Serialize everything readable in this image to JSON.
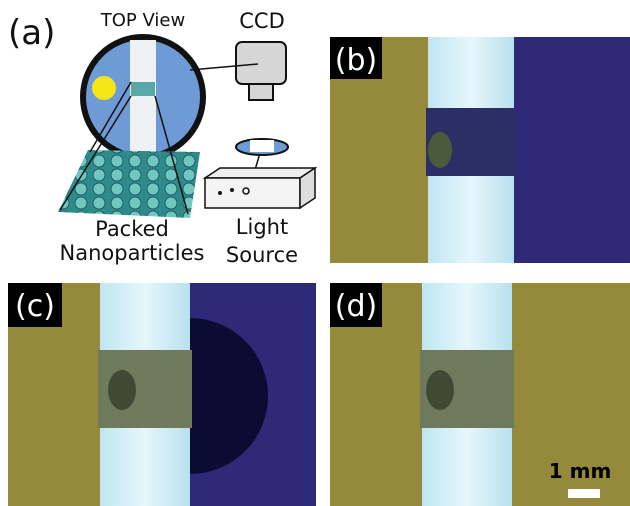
{
  "panel_a": {
    "label": "(a)",
    "top_view": "TOP View",
    "camera": "CCD",
    "sample": [
      "Packed",
      "Nanoparticles"
    ],
    "source": [
      "Light",
      "Source"
    ]
  },
  "panel_b": {
    "label": "(b)"
  },
  "panel_c": {
    "label": "(c)"
  },
  "panel_d": {
    "label": "(d)",
    "scale_bar": "1 mm"
  }
}
